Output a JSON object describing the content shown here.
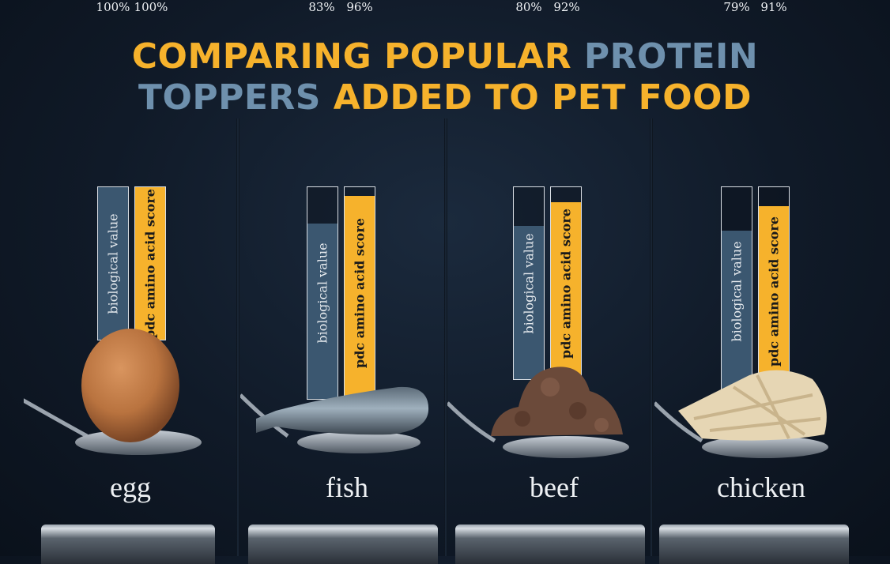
{
  "title": {
    "line1_a": "COMPARING POPULAR ",
    "line1_b": "PROTEIN",
    "line2_a": "TOPPERS",
    "line2_b": " ADDED TO PET FOOD"
  },
  "colors": {
    "orange": "#f6b22c",
    "blue": "#6e90ad",
    "biological_value": "#3b5770",
    "pdc_amino_acid_score": "#f6b22c"
  },
  "chart_data": {
    "type": "bar",
    "title": "COMPARING POPULAR PROTEIN TOPPERS ADDED TO PET FOOD",
    "categories": [
      "egg",
      "fish",
      "beef",
      "chicken"
    ],
    "ylim": [
      0,
      100
    ],
    "series": [
      {
        "name": "biological value",
        "values": [
          100,
          83,
          80,
          79
        ]
      },
      {
        "name": "pdc amino acid score",
        "values": [
          100,
          96,
          92,
          91
        ]
      }
    ]
  },
  "panels": [
    {
      "food": "egg",
      "bio_label": "100%",
      "pdc_label": "100%",
      "bio_text": "biological value",
      "pdc_text": "pdc amino acid score",
      "food_icon": "egg-on-spoon"
    },
    {
      "food": "fish",
      "bio_label": "83%",
      "pdc_label": "96%",
      "bio_text": "biological value",
      "pdc_text": "pdc amino acid score",
      "food_icon": "sardine-on-spoon"
    },
    {
      "food": "beef",
      "bio_label": "80%",
      "pdc_label": "92%",
      "bio_text": "biological value",
      "pdc_text": "pdc amino acid score",
      "food_icon": "ground-beef-on-spoon"
    },
    {
      "food": "chicken",
      "bio_label": "79%",
      "pdc_label": "91%",
      "bio_text": "biological value",
      "pdc_text": "pdc amino acid score",
      "food_icon": "shredded-chicken-on-spoon"
    }
  ]
}
